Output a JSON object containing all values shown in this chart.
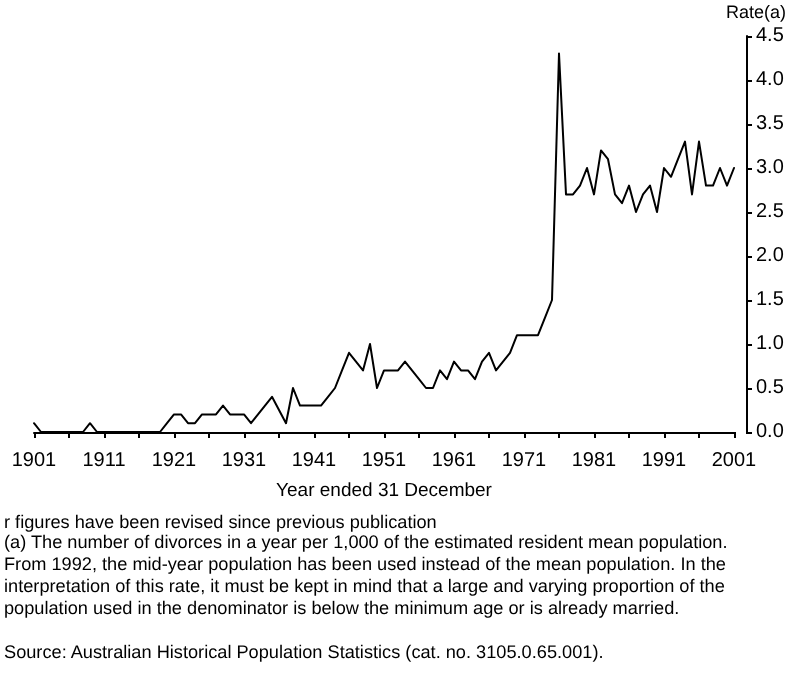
{
  "chart_data": {
    "type": "line",
    "ylabel": "Rate(a)",
    "xlabel": "Year ended 31 December",
    "annotations": [
      "r figures have been revised since previous publication",
      "(a) The number of divorces in a year per 1,000 of the estimated resident mean population. From 1992, the mid-year population has been used instead of the mean population. In the interpretation of this rate, it must be kept in mind that a large and varying proportion of the population used in the denominator is below the minimum age or is already married.",
      "Source: Australian Historical Population Statistics (cat. no. 3105.0.65.001)."
    ],
    "x": [
      1901,
      1902,
      1903,
      1904,
      1905,
      1906,
      1907,
      1908,
      1909,
      1910,
      1911,
      1912,
      1913,
      1914,
      1915,
      1916,
      1917,
      1918,
      1919,
      1920,
      1921,
      1922,
      1923,
      1924,
      1925,
      1926,
      1927,
      1928,
      1929,
      1930,
      1931,
      1932,
      1933,
      1934,
      1935,
      1936,
      1937,
      1938,
      1939,
      1940,
      1941,
      1942,
      1943,
      1944,
      1945,
      1946,
      1947,
      1948,
      1949,
      1950,
      1951,
      1952,
      1953,
      1954,
      1955,
      1956,
      1957,
      1958,
      1959,
      1960,
      1961,
      1962,
      1963,
      1964,
      1965,
      1966,
      1967,
      1968,
      1969,
      1970,
      1971,
      1972,
      1973,
      1974,
      1975,
      1976,
      1977,
      1978,
      1979,
      1980,
      1981,
      1982,
      1983,
      1984,
      1985,
      1986,
      1987,
      1988,
      1989,
      1990,
      1991,
      1992,
      1993,
      1994,
      1995,
      1996,
      1997,
      1998,
      1999,
      2000,
      2001
    ],
    "values": [
      0.1,
      0,
      0,
      0,
      0,
      0,
      0,
      0,
      0.1,
      0,
      0,
      0,
      0,
      0,
      0,
      0,
      0,
      0,
      0,
      0.1,
      0.2,
      0.2,
      0.1,
      0.1,
      0.2,
      0.2,
      0.2,
      0.3,
      0.2,
      0.2,
      0.2,
      0.1,
      0.2,
      0.3,
      0.4,
      0.25,
      0.1,
      0.5,
      0.3,
      0.3,
      0.3,
      0.3,
      0.4,
      0.5,
      0.7,
      0.9,
      0.8,
      0.7,
      1.0,
      0.5,
      0.7,
      0.7,
      0.7,
      0.8,
      0.7,
      0.6,
      0.5,
      0.5,
      0.7,
      0.6,
      0.8,
      0.7,
      0.7,
      0.6,
      0.8,
      0.9,
      0.7,
      0.8,
      0.9,
      1.1,
      1.1,
      1.1,
      1.1,
      1.3,
      1.5,
      4.3,
      2.7,
      2.7,
      2.8,
      3.0,
      2.7,
      3.2,
      3.1,
      2.7,
      2.6,
      2.8,
      2.5,
      2.7,
      2.8,
      2.5,
      3.0,
      2.9,
      3.1,
      3.3,
      2.7,
      3.3,
      2.8,
      2.8,
      3.0,
      2.8,
      3.0
    ],
    "color": "#000000",
    "xlim": [
      1901,
      2001
    ],
    "xticks": [
      1901,
      {
        "value": 1906,
        "label": null
      },
      1911,
      {
        "value": 1916,
        "label": null
      },
      1921,
      {
        "value": 1926,
        "label": null
      },
      1931,
      {
        "value": 1936,
        "label": null
      },
      1941,
      {
        "value": 1946,
        "label": null
      },
      1951,
      {
        "value": 1956,
        "label": null
      },
      1961,
      {
        "value": 1966,
        "label": null
      },
      1971,
      {
        "value": 1976,
        "label": null
      },
      1981,
      {
        "value": 1986,
        "label": null
      },
      1991,
      {
        "value": 1996,
        "label": null
      },
      2001
    ],
    "ylim": [
      0,
      4.5
    ],
    "yticks": [
      {
        "value": 0,
        "label": "0.0"
      },
      0.5,
      {
        "value": 1,
        "label": "1.0"
      },
      1.5,
      {
        "value": 2,
        "label": "2.0"
      },
      2.5,
      {
        "value": 3,
        "label": "3.0"
      },
      3.5,
      {
        "value": 4,
        "label": "4.0"
      },
      4.5
    ],
    "marker": "none"
  }
}
